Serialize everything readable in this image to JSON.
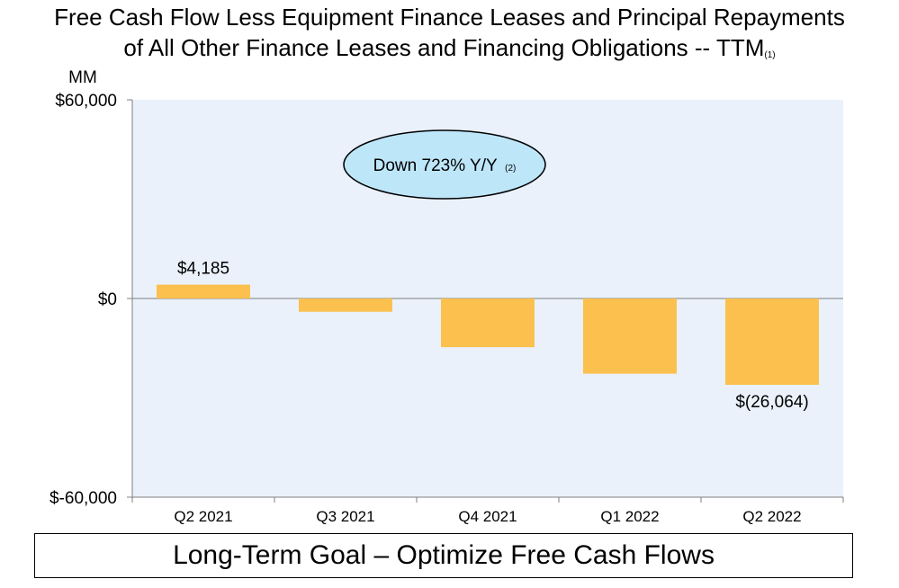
{
  "title": {
    "line1": "Free Cash Flow Less Equipment Finance Leases and Principal Repayments",
    "line2": "of All Other Finance Leases and Financing Obligations -- TTM",
    "footnote": "(1)"
  },
  "chart_data": {
    "type": "bar",
    "categories": [
      "Q2 2021",
      "Q3 2021",
      "Q4 2021",
      "Q1 2022",
      "Q2 2022"
    ],
    "values": [
      4185,
      -4000,
      -14700,
      -22700,
      -26064
    ],
    "data_labels": [
      "$4,185",
      "",
      "",
      "",
      "$(26,064)"
    ],
    "ylabel": "MM",
    "ylim": [
      -60000,
      60000
    ],
    "y_ticks": [
      60000,
      0,
      -60000
    ],
    "y_tick_labels": [
      "$60,000",
      "$0",
      "$-60,000"
    ],
    "annotation": {
      "text": "Down 723% Y/Y",
      "footnote": "(2)"
    },
    "colors": {
      "bar": "#FBC04E",
      "plot_bg": "#EAF1FB",
      "bubble_fill": "#BEE6F9",
      "axis": "#7F7F7F"
    }
  },
  "footer": {
    "text": "Long-Term Goal – Optimize Free Cash Flows"
  }
}
